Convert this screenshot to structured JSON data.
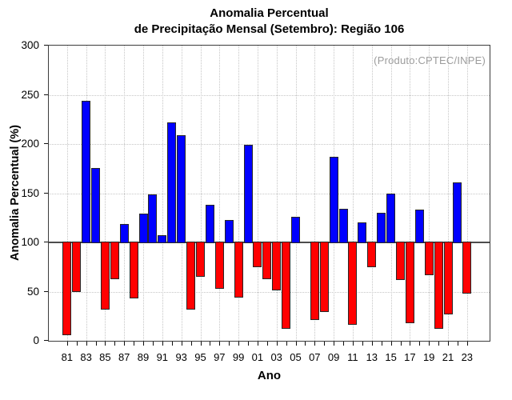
{
  "chart_data": {
    "type": "bar",
    "title_line1": "Anomalia Percentual",
    "title_line2": "de Precipitação Mensal (Setembro): Região 106",
    "xlabel": "Ano",
    "ylabel": "Anomalia Percentual (%)",
    "annotation": "(Produto:CPTEC/INPE)",
    "ylim": [
      0,
      300
    ],
    "y_ticks": [
      0,
      50,
      100,
      150,
      200,
      250,
      300
    ],
    "baseline": 100,
    "grid": true,
    "legend": "none",
    "years": [
      "81",
      "82",
      "83",
      "84",
      "85",
      "86",
      "87",
      "88",
      "89",
      "90",
      "91",
      "92",
      "93",
      "94",
      "95",
      "96",
      "97",
      "98",
      "99",
      "00",
      "01",
      "02",
      "03",
      "04",
      "05",
      "06",
      "07",
      "08",
      "09",
      "10",
      "11",
      "12",
      "13",
      "14",
      "15",
      "16",
      "17",
      "18",
      "19",
      "20",
      "21",
      "22",
      "23"
    ],
    "values": [
      6,
      50,
      244,
      176,
      32,
      63,
      119,
      43,
      129,
      149,
      107,
      222,
      209,
      32,
      65,
      138,
      53,
      123,
      44,
      199,
      75,
      63,
      51,
      12,
      126,
      100,
      21,
      29,
      187,
      134,
      16,
      120,
      75,
      130,
      150,
      62,
      18,
      133,
      67,
      12,
      27,
      161,
      48
    ],
    "colors": {
      "above_baseline": "#0000ff",
      "below_baseline": "#ff0000",
      "baseline_line": "#4d4d4d",
      "grid_line": "#c6c6c6",
      "frame": "#3c3c3c",
      "annotation_text": "#9c9c9c"
    }
  }
}
